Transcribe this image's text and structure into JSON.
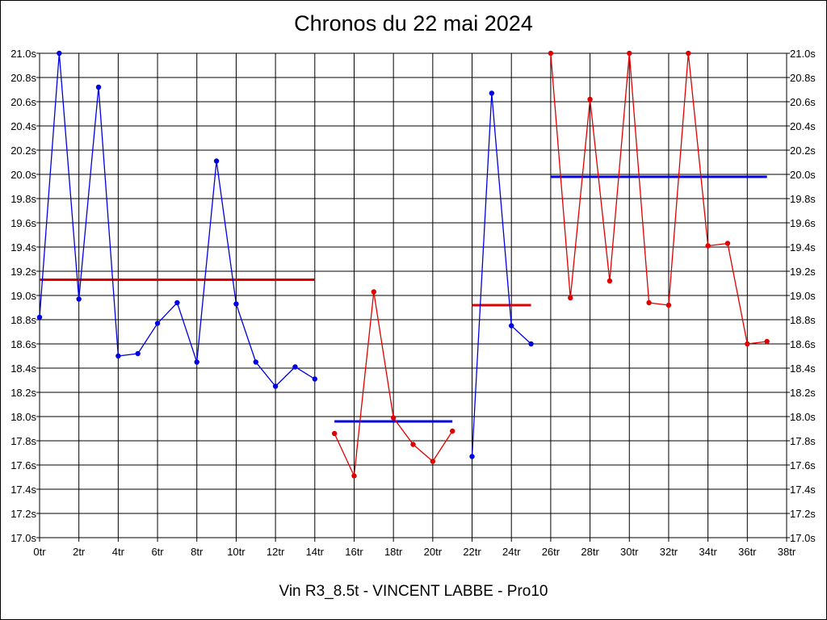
{
  "chart_data": {
    "type": "line",
    "title": "Chronos du 22 mai 2024",
    "subtitle": "Vin R3_8.5t - VINCENT LABBE - Pro10",
    "xlabel": "",
    "ylabel": "",
    "xlim": [
      0,
      38
    ],
    "ylim": [
      17.0,
      21.0
    ],
    "grid": true,
    "x_tick_labels": [
      "0tr",
      "2tr",
      "4tr",
      "6tr",
      "8tr",
      "10tr",
      "12tr",
      "14tr",
      "16tr",
      "18tr",
      "20tr",
      "22tr",
      "24tr",
      "26tr",
      "28tr",
      "30tr",
      "32tr",
      "34tr",
      "36tr",
      "38tr"
    ],
    "y_tick_labels": [
      "17.0s",
      "17.2s",
      "17.4s",
      "17.6s",
      "17.8s",
      "18.0s",
      "18.2s",
      "18.4s",
      "18.6s",
      "18.8s",
      "19.0s",
      "19.2s",
      "19.4s",
      "19.6s",
      "19.8s",
      "20.0s",
      "20.2s",
      "20.4s",
      "20.6s",
      "20.8s",
      "21.0s"
    ],
    "colors": {
      "blue": "#0000e0",
      "red": "#e00000"
    },
    "series": [
      {
        "color": "#0000e0",
        "x": [
          0,
          1,
          2,
          3,
          4,
          5,
          6,
          7,
          8,
          9,
          10,
          11,
          12,
          13,
          14
        ],
        "y": [
          18.82,
          21.0,
          18.97,
          20.72,
          18.5,
          18.52,
          18.77,
          18.94,
          18.45,
          20.11,
          18.93,
          18.45,
          18.25,
          18.41,
          18.31
        ]
      },
      {
        "color": "#e00000",
        "x": [
          15,
          16,
          17,
          18,
          19,
          20,
          21
        ],
        "y": [
          17.86,
          17.51,
          19.03,
          17.99,
          17.77,
          17.63,
          17.88
        ]
      },
      {
        "color": "#0000e0",
        "x": [
          22,
          23,
          24,
          25
        ],
        "y": [
          17.67,
          20.67,
          18.75,
          18.6
        ]
      },
      {
        "color": "#e00000",
        "x": [
          26,
          27,
          28,
          29,
          30,
          31,
          32,
          33,
          34,
          35,
          36,
          37
        ],
        "y": [
          21.0,
          18.98,
          20.62,
          19.12,
          21.0,
          18.94,
          18.92,
          21.0,
          19.41,
          19.43,
          18.6,
          18.62
        ]
      }
    ],
    "averages": [
      {
        "color": "#e00000",
        "x": [
          0,
          14
        ],
        "y": 19.13
      },
      {
        "color": "#0000e0",
        "x": [
          15,
          21
        ],
        "y": 17.96
      },
      {
        "color": "#e00000",
        "x": [
          22,
          25
        ],
        "y": 18.92
      },
      {
        "color": "#0000e0",
        "x": [
          26,
          37
        ],
        "y": 19.98
      }
    ]
  }
}
